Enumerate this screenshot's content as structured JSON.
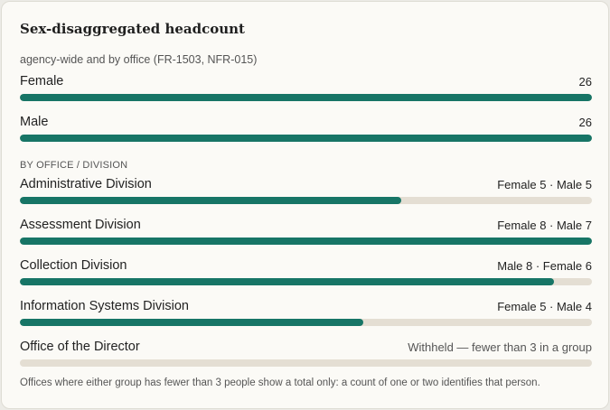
{
  "card": {
    "title": "Sex-disaggregated headcount",
    "subtitle": "agency-wide and by office (FR-1503, NFR-015)"
  },
  "overall": [
    {
      "label": "Female",
      "value": "26",
      "fill": 1.0
    },
    {
      "label": "Male",
      "value": "26",
      "fill": 1.0
    }
  ],
  "section_label": "BY OFFICE / DIVISION",
  "offices": [
    {
      "label": "Administrative Division",
      "value": "Female 5 · Male 5",
      "fill": 0.667
    },
    {
      "label": "Assessment Division",
      "value": "Female 8 · Male 7",
      "fill": 1.0
    },
    {
      "label": "Collection Division",
      "value": "Male 8 · Female 6",
      "fill": 0.933
    },
    {
      "label": "Information Systems Division",
      "value": "Female 5 · Male 4",
      "fill": 0.6
    },
    {
      "label": "Office of the Director",
      "value": "Withheld — fewer than 3 in a group",
      "fill": 0
    }
  ],
  "footnote": "Offices where either group has fewer than 3 people show a total only: a count of one or two identifies that person.",
  "colors": {
    "bar_fill": "#177566",
    "bar_track": "#e4ded3"
  }
}
